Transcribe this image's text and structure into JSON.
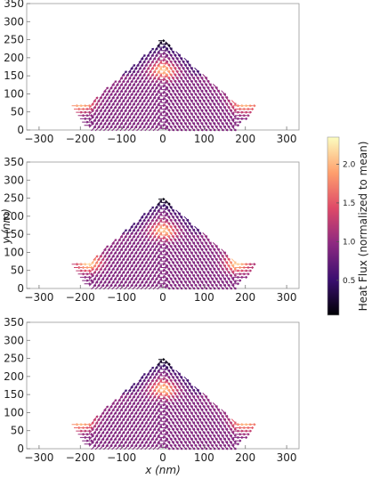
{
  "chart_data": {
    "type": "vector-field",
    "panels": [
      {
        "xlim": [
          -330,
          330
        ],
        "ylim": [
          0,
          350
        ],
        "xticks": [
          -300,
          -200,
          -100,
          0,
          100,
          200,
          300
        ],
        "yticks": [
          0,
          50,
          100,
          150,
          200,
          250,
          300,
          350
        ],
        "xtick_labels": [
          "−300",
          "−200",
          "−100",
          "0",
          "100",
          "200",
          "300"
        ],
        "ytick_labels": [
          "0",
          "50",
          "100",
          "150",
          "200",
          "250",
          "300",
          "350"
        ],
        "hot_spots": [
          [
            -200,
            75
          ],
          [
            0,
            165
          ],
          [
            200,
            75
          ]
        ]
      },
      {
        "xlim": [
          -330,
          330
        ],
        "ylim": [
          0,
          350
        ],
        "xticks": [
          -300,
          -200,
          -100,
          0,
          100,
          200,
          300
        ],
        "yticks": [
          0,
          50,
          100,
          150,
          200,
          250,
          300,
          350
        ],
        "xtick_labels": [
          "−300",
          "−200",
          "−100",
          "0",
          "100",
          "200",
          "300"
        ],
        "ytick_labels": [
          "0",
          "50",
          "100",
          "150",
          "200",
          "250",
          "300",
          "350"
        ],
        "hot_spots": [
          [
            -180,
            70
          ],
          [
            0,
            160
          ],
          [
            180,
            70
          ]
        ]
      },
      {
        "xlim": [
          -330,
          330
        ],
        "ylim": [
          0,
          350
        ],
        "xticks": [
          -300,
          -200,
          -100,
          0,
          100,
          200,
          300
        ],
        "yticks": [
          0,
          50,
          100,
          150,
          200,
          250,
          300,
          350
        ],
        "xtick_labels": [
          "−300",
          "−200",
          "−100",
          "0",
          "100",
          "200",
          "300"
        ],
        "ytick_labels": [
          "0",
          "50",
          "100",
          "150",
          "200",
          "250",
          "300",
          "350"
        ],
        "hot_spots": [
          [
            -200,
            75
          ],
          [
            0,
            165
          ],
          [
            200,
            75
          ]
        ]
      }
    ],
    "xlabel": "x (nm)",
    "ylabel": "y (nm)",
    "colorbar": {
      "label": "Heat Flux (normalized to mean)",
      "range": [
        0.05,
        2.35
      ],
      "ticks": [
        0.5,
        1.0,
        1.5,
        2.0
      ],
      "tick_labels": [
        "0.5",
        "1.0",
        "1.5",
        "2.0"
      ],
      "colormap": [
        "#000004",
        "#3b0f70",
        "#8c2981",
        "#de4968",
        "#fe9f6d",
        "#fcfdbf"
      ]
    }
  }
}
